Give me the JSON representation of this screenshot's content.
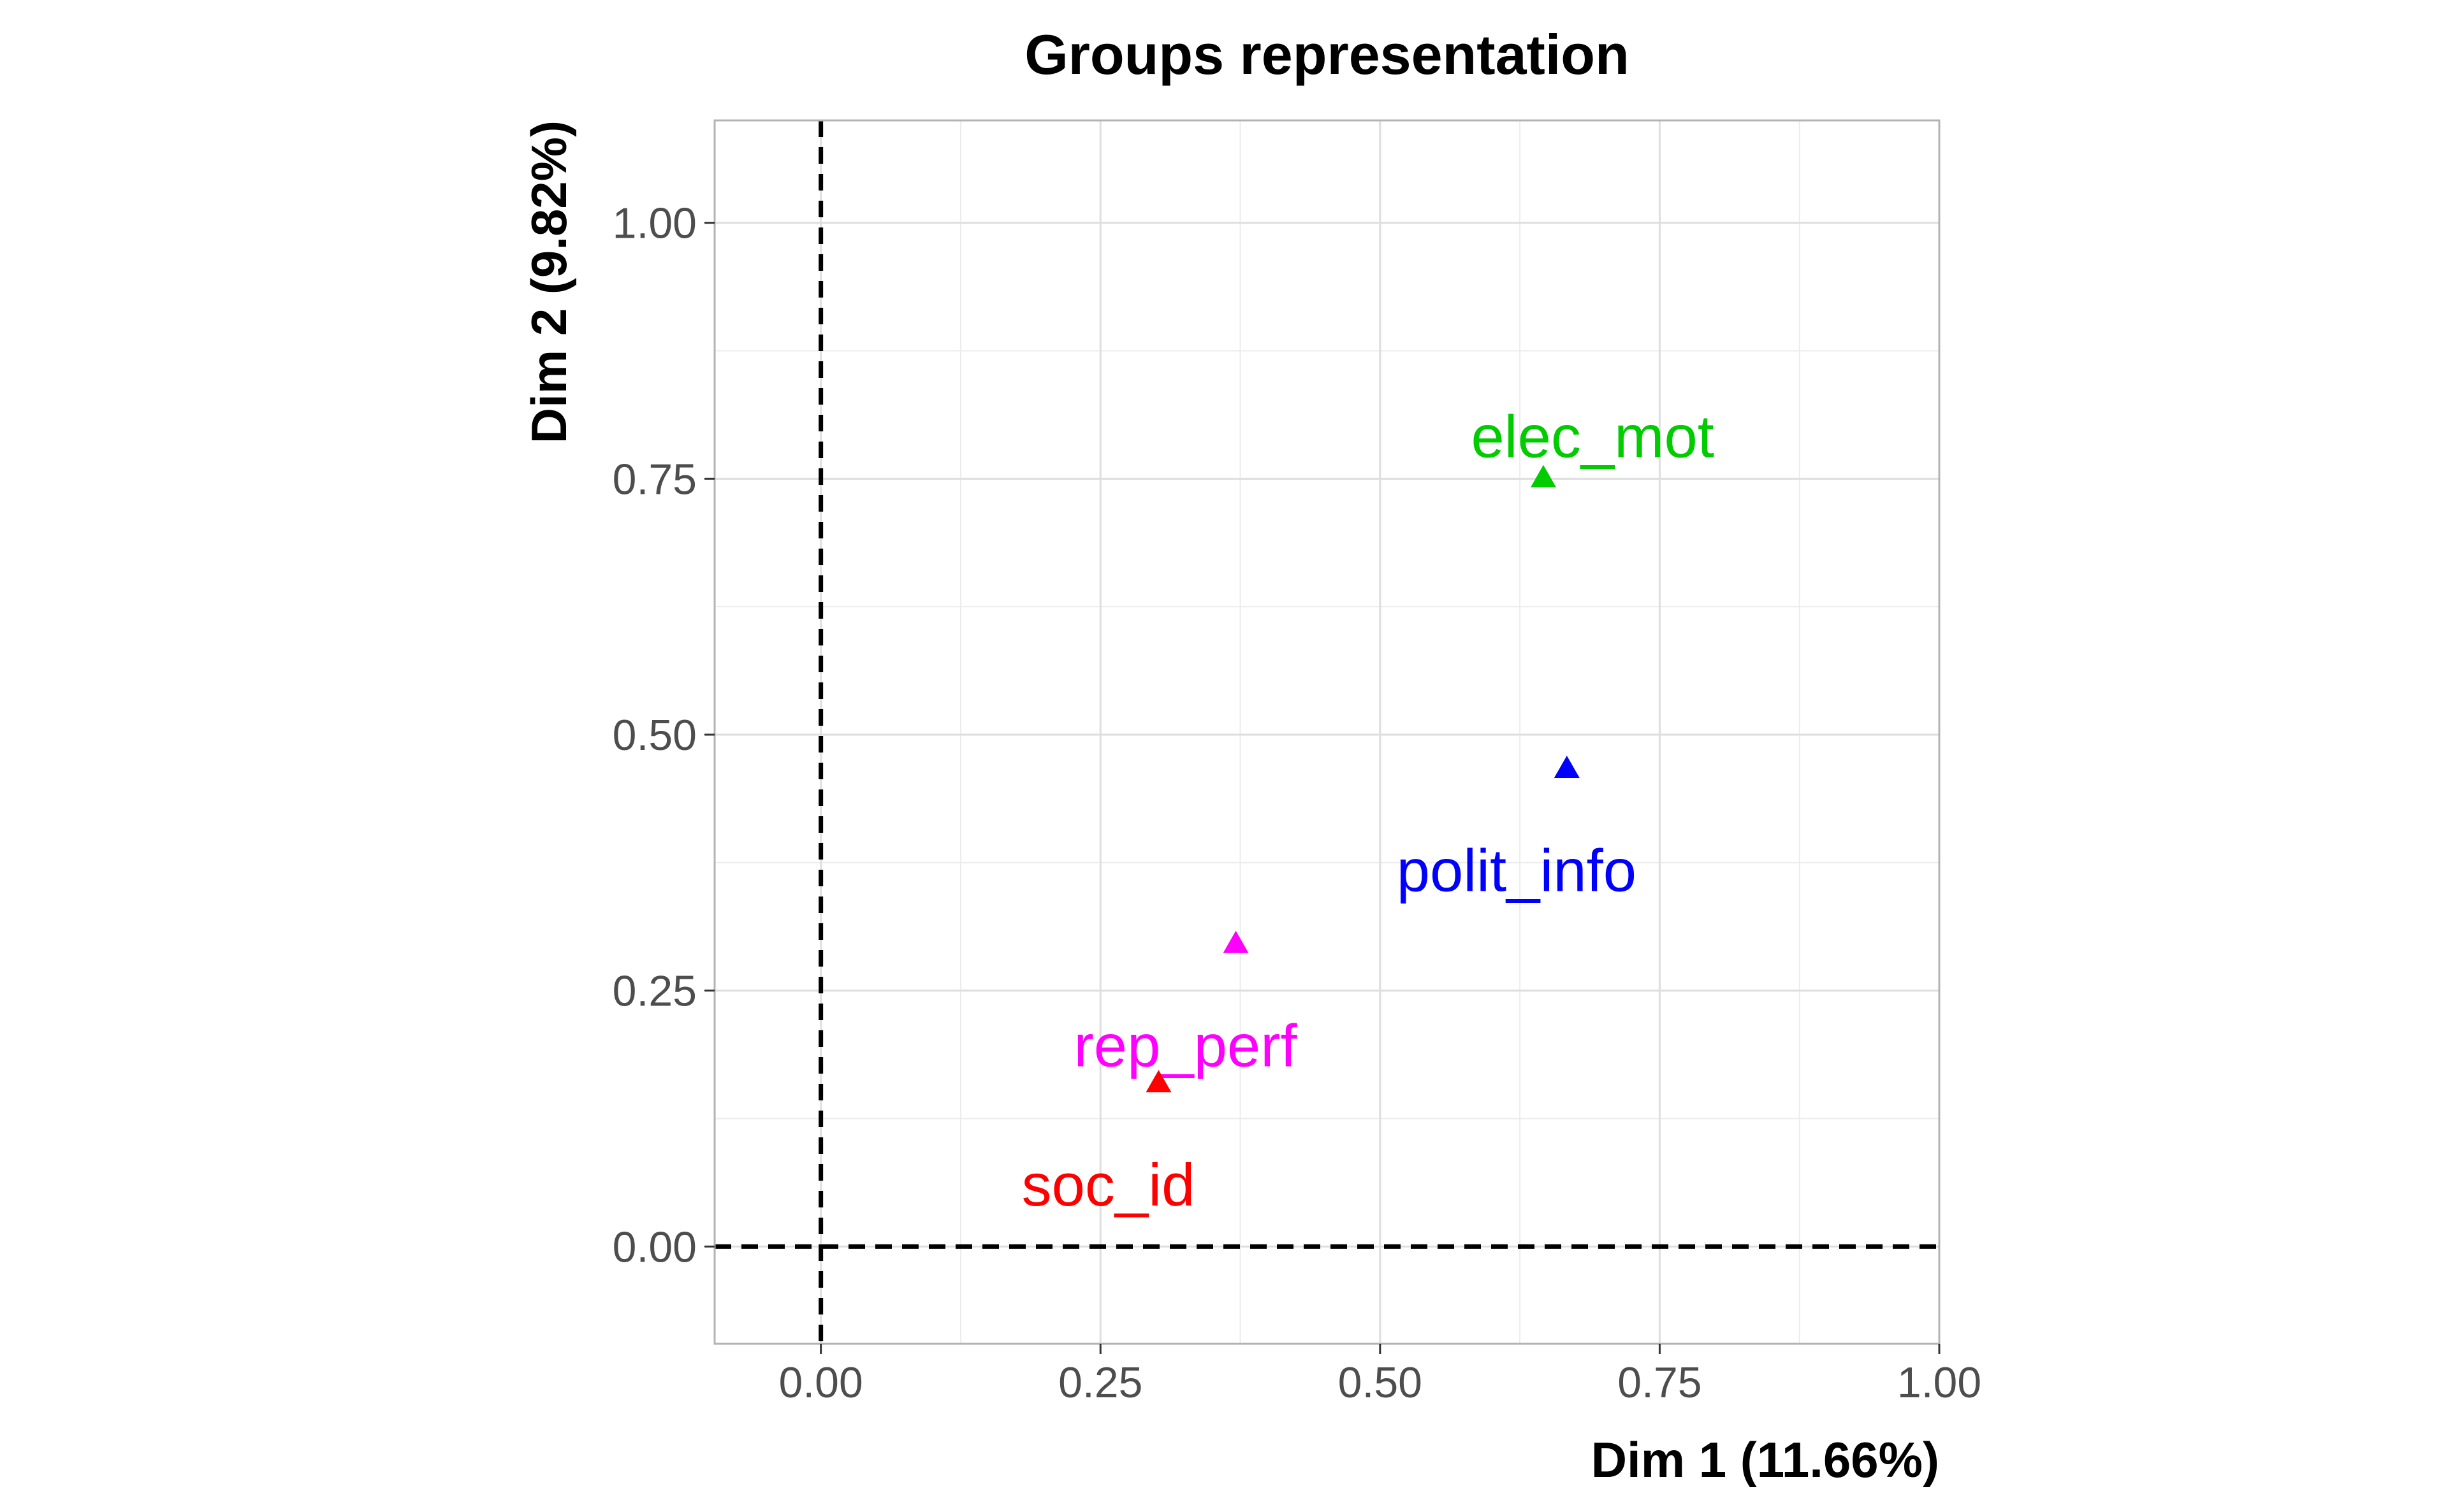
{
  "chart_data": {
    "type": "scatter",
    "title": "Groups representation",
    "xlabel": "Dim 1 (11.66%)",
    "ylabel": "Dim 2 (9.82%)",
    "xlim": [
      -0.095,
      1.0
    ],
    "ylim": [
      -0.095,
      1.1
    ],
    "x_ticks": [
      0.0,
      0.25,
      0.5,
      0.75,
      1.0
    ],
    "x_tick_labels": [
      "0.00",
      "0.25",
      "0.50",
      "0.75",
      "1.00"
    ],
    "y_ticks": [
      0.0,
      0.25,
      0.5,
      0.75,
      1.0
    ],
    "y_tick_labels": [
      "0.00",
      "0.25",
      "0.50",
      "0.75",
      "1.00"
    ],
    "grid": true,
    "reference_lines": {
      "x": 0,
      "y": 0,
      "style": "dashed"
    },
    "marker": "triangle",
    "points": [
      {
        "label": "elec_mot",
        "x": 0.646,
        "y": 0.751,
        "color": "#00cc00",
        "label_dx": 0.044,
        "label_dy": 0.04
      },
      {
        "label": "polit_info",
        "x": 0.667,
        "y": 0.467,
        "color": "#0000ff",
        "label_dx": -0.045,
        "label_dy": -0.1
      },
      {
        "label": "rep_perf",
        "x": 0.371,
        "y": 0.296,
        "color": "#ff00ff",
        "label_dx": -0.045,
        "label_dy": -0.1
      },
      {
        "label": "soc_id",
        "x": 0.302,
        "y": 0.16,
        "color": "#ff0000",
        "label_dx": -0.045,
        "label_dy": -0.1
      }
    ]
  }
}
